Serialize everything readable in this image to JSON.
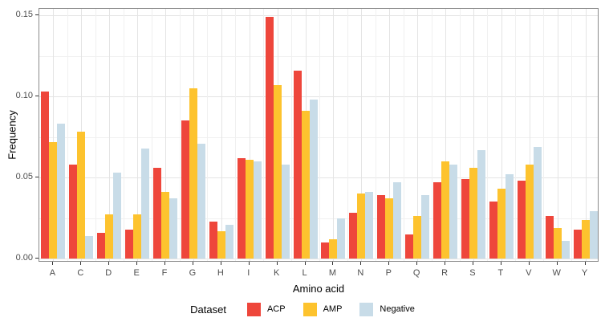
{
  "chart_data": {
    "type": "bar",
    "title": "",
    "xlabel": "Amino acid",
    "ylabel": "Frequency",
    "categories": [
      "A",
      "C",
      "D",
      "E",
      "F",
      "G",
      "H",
      "I",
      "K",
      "L",
      "M",
      "N",
      "P",
      "Q",
      "R",
      "S",
      "T",
      "V",
      "W",
      "Y"
    ],
    "series": [
      {
        "name": "ACP",
        "color": "#ee463b",
        "values": [
          0.103,
          0.058,
          0.016,
          0.018,
          0.056,
          0.085,
          0.023,
          0.062,
          0.149,
          0.116,
          0.01,
          0.028,
          0.039,
          0.015,
          0.047,
          0.049,
          0.035,
          0.048,
          0.026,
          0.018
        ]
      },
      {
        "name": "AMP",
        "color": "#fdc32e",
        "values": [
          0.072,
          0.078,
          0.027,
          0.027,
          0.041,
          0.105,
          0.017,
          0.061,
          0.107,
          0.091,
          0.012,
          0.04,
          0.037,
          0.026,
          0.06,
          0.056,
          0.043,
          0.058,
          0.019,
          0.024
        ]
      },
      {
        "name": "Negative",
        "color": "#c8dce8",
        "values": [
          0.083,
          0.014,
          0.053,
          0.068,
          0.037,
          0.071,
          0.021,
          0.06,
          0.058,
          0.098,
          0.025,
          0.041,
          0.047,
          0.039,
          0.058,
          0.067,
          0.052,
          0.069,
          0.011,
          0.029
        ]
      }
    ],
    "ylim": [
      0,
      0.155
    ],
    "yticks": [
      {
        "label": "0.00",
        "value": 0.0
      },
      {
        "label": "0.05",
        "value": 0.05
      },
      {
        "label": "0.10",
        "value": 0.1
      },
      {
        "label": "0.15",
        "value": 0.15
      }
    ],
    "minor_yticks": [
      0.025,
      0.075,
      0.125
    ],
    "legend_title": "Dataset",
    "legend_position": "bottom",
    "grid": true
  }
}
